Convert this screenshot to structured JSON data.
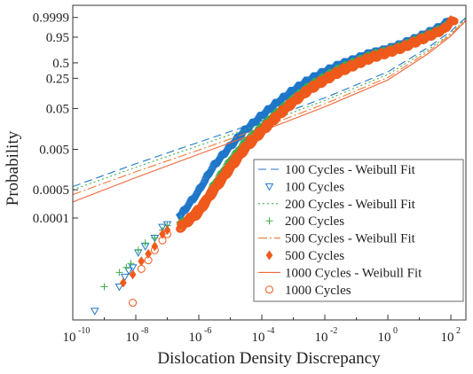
{
  "chart_data": {
    "type": "scatter",
    "title": "",
    "xlabel": "Dislocation Density Discrepancy",
    "ylabel": "Probability",
    "x_scale": "log",
    "y_scale": "weibull",
    "xlim": [
      1e-10,
      300
    ],
    "ylim": [
      3e-07,
      0.99999999
    ],
    "x_ticks": [
      {
        "value": 1e-10,
        "base": "10",
        "exp": "-10"
      },
      {
        "value": 1e-08,
        "base": "10",
        "exp": "-8"
      },
      {
        "value": 1e-06,
        "base": "10",
        "exp": "-6"
      },
      {
        "value": 0.0001,
        "base": "10",
        "exp": "-4"
      },
      {
        "value": 0.01,
        "base": "10",
        "exp": "-2"
      },
      {
        "value": 1,
        "base": "10",
        "exp": "0"
      },
      {
        "value": 100,
        "base": "10",
        "exp": "2"
      }
    ],
    "y_ticks": [
      {
        "value": 0.9999,
        "label": "0.9999"
      },
      {
        "value": 0.95,
        "label": "0.95"
      },
      {
        "value": 0.5,
        "label": "0.5"
      },
      {
        "value": 0.25,
        "label": "0.25"
      },
      {
        "value": 0.05,
        "label": "0.05"
      },
      {
        "value": 0.005,
        "label": "0.005"
      },
      {
        "value": 0.0005,
        "label": "0.0005"
      },
      {
        "value": 0.0001,
        "label": "0.0001"
      }
    ],
    "grid": false,
    "legend_position": "bottom-right",
    "series": [
      {
        "name": "100 Cycles - Weibull Fit",
        "kind": "fit",
        "color": "#1f77c9",
        "dash": "9,5",
        "x": [
          1e-10,
          1e-08,
          1e-06,
          0.0001,
          0.01,
          1,
          20,
          100,
          300
        ],
        "y": [
          0.0006,
          0.0022,
          0.0075,
          0.025,
          0.09,
          0.34,
          0.82,
          0.985,
          0.9999
        ]
      },
      {
        "name": "100 Cycles",
        "kind": "data",
        "marker": "triangle-down",
        "color": "#1f77c9",
        "x": [
          5e-10,
          3e-09,
          4.5e-09,
          6e-09,
          8e-09,
          1.2e-08,
          2e-08,
          4e-08,
          7e-08,
          1e-07,
          3e-07,
          1e-06,
          3e-06,
          1e-05,
          3e-05,
          0.0001,
          0.0003,
          0.001,
          0.003,
          0.01,
          0.03,
          0.1,
          0.3,
          1,
          3,
          10,
          40,
          70,
          100
        ],
        "y": [
          5e-07,
          2e-06,
          3.5e-06,
          5e-06,
          6e-06,
          1.4e-05,
          2e-05,
          3.2e-05,
          6e-05,
          7e-05,
          0.00012,
          0.00042,
          0.0018,
          0.0055,
          0.014,
          0.032,
          0.065,
          0.13,
          0.22,
          0.34,
          0.46,
          0.58,
          0.7,
          0.78,
          0.87,
          0.95,
          0.993,
          0.998,
          0.9997
        ]
      },
      {
        "name": "200 Cycles - Weibull Fit",
        "kind": "fit",
        "color": "#3cae4c",
        "dash": "2,3",
        "x": [
          1e-10,
          1e-08,
          1e-06,
          0.0001,
          0.01,
          1,
          20,
          100,
          300
        ],
        "y": [
          0.0005,
          0.0018,
          0.0062,
          0.021,
          0.078,
          0.3,
          0.78,
          0.975,
          0.9998
        ]
      },
      {
        "name": "200 Cycles",
        "kind": "data",
        "marker": "plus",
        "color": "#3cae4c",
        "x": [
          1e-09,
          3e-09,
          5e-09,
          7e-09,
          1.2e-08,
          2e-08,
          4e-08,
          7e-08,
          1e-07,
          3e-07,
          1e-06,
          3e-06,
          1e-05,
          3e-05,
          0.0001,
          0.0003,
          0.001,
          0.003,
          0.01,
          0.03,
          0.1,
          0.3,
          1,
          3,
          10,
          40,
          70,
          100
        ],
        "y": [
          2e-06,
          4.5e-06,
          6e-06,
          7.5e-06,
          1.6e-05,
          2.4e-05,
          3.2e-05,
          5e-05,
          6.5e-05,
          8e-05,
          0.00015,
          0.0007,
          0.0028,
          0.008,
          0.019,
          0.042,
          0.09,
          0.17,
          0.28,
          0.41,
          0.54,
          0.67,
          0.76,
          0.85,
          0.94,
          0.99,
          0.997,
          0.9996
        ]
      },
      {
        "name": "500 Cycles - Weibull Fit",
        "kind": "fit",
        "color": "#f07a3a",
        "dash": "10,3,2,3",
        "x": [
          1e-10,
          1e-08,
          1e-06,
          0.0001,
          0.01,
          1,
          20,
          100,
          300
        ],
        "y": [
          0.00038,
          0.0014,
          0.0048,
          0.017,
          0.065,
          0.26,
          0.74,
          0.97,
          0.9997
        ]
      },
      {
        "name": "500 Cycles",
        "kind": "data",
        "marker": "diamond-filled",
        "color": "#ef5a1c",
        "x": [
          4e-09,
          8e-09,
          1.5e-08,
          2.5e-08,
          4e-08,
          7e-08,
          1e-07,
          3e-07,
          1e-06,
          3e-06,
          1e-05,
          3e-05,
          0.0001,
          0.0003,
          0.001,
          0.003,
          0.01,
          0.03,
          0.1,
          0.3,
          1,
          3,
          10,
          40,
          70,
          100
        ],
        "y": [
          2.5e-06,
          4e-06,
          8.5e-06,
          1.3e-05,
          2e-05,
          4e-05,
          5e-05,
          7e-05,
          0.00018,
          0.0006,
          0.0022,
          0.0065,
          0.016,
          0.036,
          0.08,
          0.15,
          0.25,
          0.37,
          0.5,
          0.63,
          0.73,
          0.83,
          0.93,
          0.985,
          0.995,
          0.9995
        ]
      },
      {
        "name": "1000 Cycles - Weibull Fit",
        "kind": "fit",
        "color": "#f0663a",
        "dash": "",
        "x": [
          1e-10,
          1e-08,
          1e-06,
          0.0001,
          0.01,
          1,
          20,
          100,
          300
        ],
        "y": [
          0.00025,
          0.001,
          0.0038,
          0.014,
          0.055,
          0.23,
          0.7,
          0.96,
          0.9995
        ]
      },
      {
        "name": "1000 Cycles",
        "kind": "data",
        "marker": "circle-open",
        "color": "#ef5a1c",
        "x": [
          8e-09,
          1.5e-08,
          2.5e-08,
          4e-08,
          7e-08,
          1e-07,
          3e-07,
          1e-06,
          3e-06,
          1e-05,
          3e-05,
          0.0001,
          0.0003,
          0.001,
          0.003,
          0.01,
          0.03,
          0.1,
          0.3,
          1,
          3,
          10,
          40,
          70,
          100,
          130
        ],
        "y": [
          8e-07,
          5.5e-06,
          9e-06,
          1.6e-05,
          2.8e-05,
          4e-05,
          6e-05,
          0.00013,
          0.00045,
          0.0016,
          0.005,
          0.013,
          0.03,
          0.068,
          0.13,
          0.22,
          0.33,
          0.46,
          0.59,
          0.7,
          0.8,
          0.91,
          0.98,
          0.994,
          0.9993,
          0.9996
        ]
      }
    ]
  }
}
